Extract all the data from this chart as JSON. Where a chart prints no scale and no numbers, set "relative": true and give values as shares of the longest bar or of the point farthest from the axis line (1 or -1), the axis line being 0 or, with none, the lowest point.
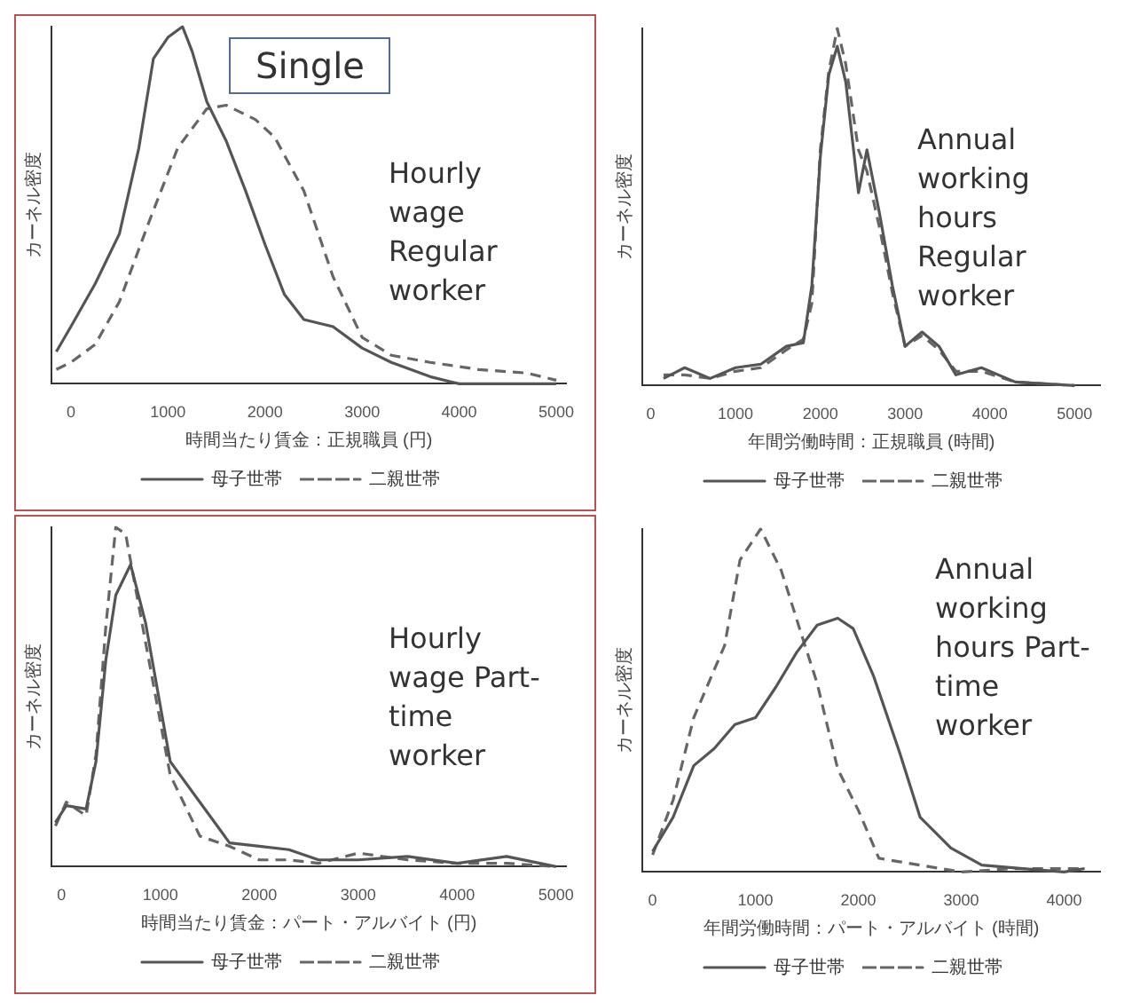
{
  "chart_data": [
    {
      "type": "line",
      "title": "Single",
      "relative": true,
      "xlabel": "時間当たり賃金：正規職員 (円)",
      "ylabel": "カーネル密度",
      "legend": "bottom",
      "marker": "none",
      "xlim": [
        -200,
        5100
      ],
      "xticks": [
        0,
        1000,
        2000,
        3000,
        4000,
        5000
      ],
      "annotations": [
        "Hourly wage Regular worker"
      ],
      "series": [
        {
          "name": "母子世帯",
          "color": "#555555",
          "line_style": "solid",
          "x": [
            -150,
            0,
            250,
            500,
            700,
            850,
            1000,
            1150,
            1250,
            1400,
            1600,
            1800,
            2000,
            2200,
            2400,
            2700,
            3000,
            3300,
            3700,
            4000,
            4500,
            5000
          ],
          "values": [
            0.09,
            0.16,
            0.28,
            0.42,
            0.66,
            0.91,
            0.97,
            1,
            0.93,
            0.79,
            0.68,
            0.54,
            0.39,
            0.25,
            0.18,
            0.16,
            0.1,
            0.06,
            0.02,
            0,
            0,
            0
          ]
        },
        {
          "name": "二親世帯",
          "color": "#666666",
          "line_style": "dashed",
          "x": [
            -150,
            0,
            250,
            500,
            800,
            1100,
            1400,
            1600,
            1900,
            2100,
            2400,
            2700,
            3000,
            3300,
            3700,
            4200,
            4700,
            5000
          ],
          "values": [
            0.04,
            0.06,
            0.11,
            0.23,
            0.45,
            0.66,
            0.77,
            0.78,
            0.74,
            0.69,
            0.54,
            0.3,
            0.13,
            0.08,
            0.06,
            0.04,
            0.03,
            0.01
          ]
        }
      ]
    },
    {
      "type": "line",
      "relative": true,
      "xlabel": "年間労働時間：正規職員 (時間)",
      "ylabel": "カーネル密度",
      "legend": "bottom",
      "marker": "none",
      "xlim": [
        -100,
        5300
      ],
      "xticks": [
        0,
        1000,
        2000,
        3000,
        4000,
        5000
      ],
      "annotations": [
        "Annual working hours Regular worker"
      ],
      "series": [
        {
          "name": "母子世帯",
          "color": "#555555",
          "line_style": "solid",
          "x": [
            150,
            400,
            700,
            1000,
            1300,
            1600,
            1800,
            1900,
            2000,
            2100,
            2200,
            2300,
            2450,
            2550,
            2700,
            2850,
            3000,
            3200,
            3400,
            3600,
            3900,
            4300,
            5000
          ],
          "values": [
            0.02,
            0.05,
            0.02,
            0.05,
            0.06,
            0.11,
            0.12,
            0.28,
            0.64,
            0.87,
            0.95,
            0.85,
            0.54,
            0.66,
            0.48,
            0.28,
            0.11,
            0.15,
            0.11,
            0.03,
            0.05,
            0.01,
            0
          ]
        },
        {
          "name": "二親世帯",
          "color": "#666666",
          "line_style": "dashed",
          "x": [
            150,
            400,
            700,
            1000,
            1300,
            1600,
            1800,
            1900,
            2000,
            2100,
            2200,
            2300,
            2450,
            2550,
            2700,
            2850,
            3000,
            3200,
            3400,
            3600,
            3900,
            4300,
            5000
          ],
          "values": [
            0.03,
            0.03,
            0.02,
            0.04,
            0.05,
            0.1,
            0.13,
            0.23,
            0.66,
            0.88,
            1,
            0.9,
            0.66,
            0.6,
            0.44,
            0.26,
            0.11,
            0.14,
            0.1,
            0.04,
            0.04,
            0.01,
            0
          ]
        }
      ]
    },
    {
      "type": "line",
      "relative": true,
      "xlabel": "時間当たり賃金：パート・アルバイト (円)",
      "ylabel": "カーネル密度",
      "legend": "bottom",
      "marker": "none",
      "xlim": [
        -100,
        5100
      ],
      "xticks": [
        0,
        1000,
        2000,
        3000,
        4000,
        5000
      ],
      "annotations": [
        "Hourly wage Part-time worker"
      ],
      "series": [
        {
          "name": "母子世帯",
          "color": "#555555",
          "line_style": "solid",
          "x": [
            -60,
            50,
            250,
            350,
            450,
            550,
            700,
            850,
            1100,
            1400,
            1700,
            2000,
            2300,
            2600,
            3000,
            3500,
            4000,
            4500,
            5000
          ],
          "values": [
            0.13,
            0.18,
            0.17,
            0.31,
            0.61,
            0.8,
            0.89,
            0.72,
            0.31,
            0.19,
            0.07,
            0.06,
            0.05,
            0.02,
            0.02,
            0.03,
            0.01,
            0.03,
            0
          ]
        },
        {
          "name": "二親世帯",
          "color": "#666666",
          "line_style": "dashed",
          "x": [
            -60,
            50,
            250,
            350,
            450,
            550,
            650,
            750,
            1100,
            1400,
            1700,
            2000,
            2300,
            2600,
            3000,
            3500,
            4000,
            4500,
            5000
          ],
          "values": [
            0.12,
            0.19,
            0.15,
            0.33,
            0.71,
            1,
            0.98,
            0.82,
            0.27,
            0.09,
            0.06,
            0.02,
            0.02,
            0.01,
            0.04,
            0.02,
            0.01,
            0.01,
            0
          ]
        }
      ]
    },
    {
      "type": "line",
      "relative": true,
      "xlabel": "年間労働時間：パート・アルバイト (時間)",
      "ylabel": "カーネル密度",
      "legend": "bottom",
      "marker": "none",
      "xlim": [
        -100,
        4350
      ],
      "xticks": [
        0,
        1000,
        2000,
        3000,
        4000
      ],
      "annotations": [
        "Annual working hours Part-time worker"
      ],
      "series": [
        {
          "name": "母子世帯",
          "color": "#555555",
          "line_style": "solid",
          "x": [
            0,
            200,
            400,
            600,
            800,
            1000,
            1200,
            1400,
            1600,
            1800,
            1950,
            2150,
            2400,
            2600,
            2900,
            3200,
            3600,
            4000,
            4200
          ],
          "values": [
            0.06,
            0.16,
            0.31,
            0.36,
            0.43,
            0.45,
            0.54,
            0.64,
            0.72,
            0.74,
            0.71,
            0.57,
            0.35,
            0.16,
            0.07,
            0.02,
            0.01,
            0,
            0.01
          ]
        },
        {
          "name": "二親世帯",
          "color": "#666666",
          "line_style": "dashed",
          "x": [
            0,
            200,
            400,
            600,
            700,
            850,
            1050,
            1250,
            1450,
            1600,
            1800,
            2000,
            2200,
            2400,
            2600,
            3000,
            3500,
            4200
          ],
          "values": [
            0.05,
            0.21,
            0.45,
            0.59,
            0.66,
            0.91,
            1,
            0.88,
            0.69,
            0.55,
            0.3,
            0.18,
            0.04,
            0.03,
            0.02,
            0,
            0.01,
            0.01
          ]
        }
      ]
    }
  ]
}
